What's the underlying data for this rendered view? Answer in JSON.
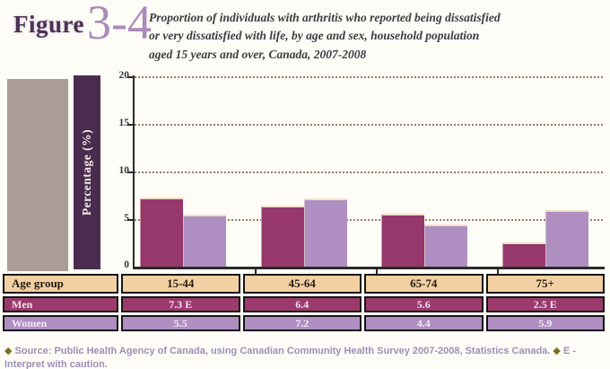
{
  "figure": {
    "label": "Figure",
    "number": "3-4"
  },
  "title": {
    "line1": "Proportion of individuals with arthritis who reported being dissatisfied",
    "line2": "or very dissatisfied with life, by age and sex, household population",
    "line3": "aged 15 years and over, Canada, 2007-2008"
  },
  "chart_data": {
    "type": "bar",
    "title": "Proportion of individuals with arthritis who reported being dissatisfied or very dissatisfied with life, by age and sex, household population aged 15 years and over, Canada, 2007-2008",
    "categories": [
      "15-44",
      "45-64",
      "65-74",
      "75+"
    ],
    "series": [
      {
        "name": "Men",
        "values": [
          7.3,
          6.4,
          5.6,
          2.5
        ],
        "labels": [
          "7.3 E",
          "6.4",
          "5.6",
          "2.5 E"
        ],
        "color": "#96386B"
      },
      {
        "name": "Women",
        "values": [
          5.5,
          7.2,
          4.4,
          5.9
        ],
        "labels": [
          "5.5",
          "7.2",
          "4.4",
          "5.9"
        ],
        "color": "#AF8EC2"
      }
    ],
    "xlabel": "Age group",
    "ylabel": "Percentage (%)",
    "ylim": [
      0,
      20
    ],
    "yticks": [
      0,
      5,
      10,
      15,
      20
    ],
    "grid": "horizontal dotted",
    "legend": "none (values shown in table below chart)"
  },
  "table": {
    "header": [
      "Age group",
      "15-44",
      "45-64",
      "65-74",
      "75+"
    ],
    "rows": [
      {
        "label": "Men",
        "values": [
          "7.3 E",
          "6.4",
          "5.6",
          "2.5 E"
        ]
      },
      {
        "label": "Women",
        "values": [
          "5.5",
          "7.2",
          "4.4",
          "5.9"
        ]
      }
    ]
  },
  "footer": {
    "bullet": "◆",
    "source": "Source: Public Health Agency of Canada, using Canadian Community Health Survey 2007-2008, Statistics Canada.",
    "note": "E - Interpret with caution."
  },
  "colors": {
    "background": "#FDFCF6",
    "figure_label": "#4B3254",
    "figure_number": "#A98CB9",
    "men": "#96386B",
    "women": "#AF8EC2",
    "table_header_bg": "#F2D0A2",
    "men_row_bg": "#9C3A6D",
    "women_row_bg": "#B08EC2",
    "yband_bg": "#4A2C4F",
    "footer_text": "#9C90B6",
    "footer_diamond": "#7C7120"
  }
}
